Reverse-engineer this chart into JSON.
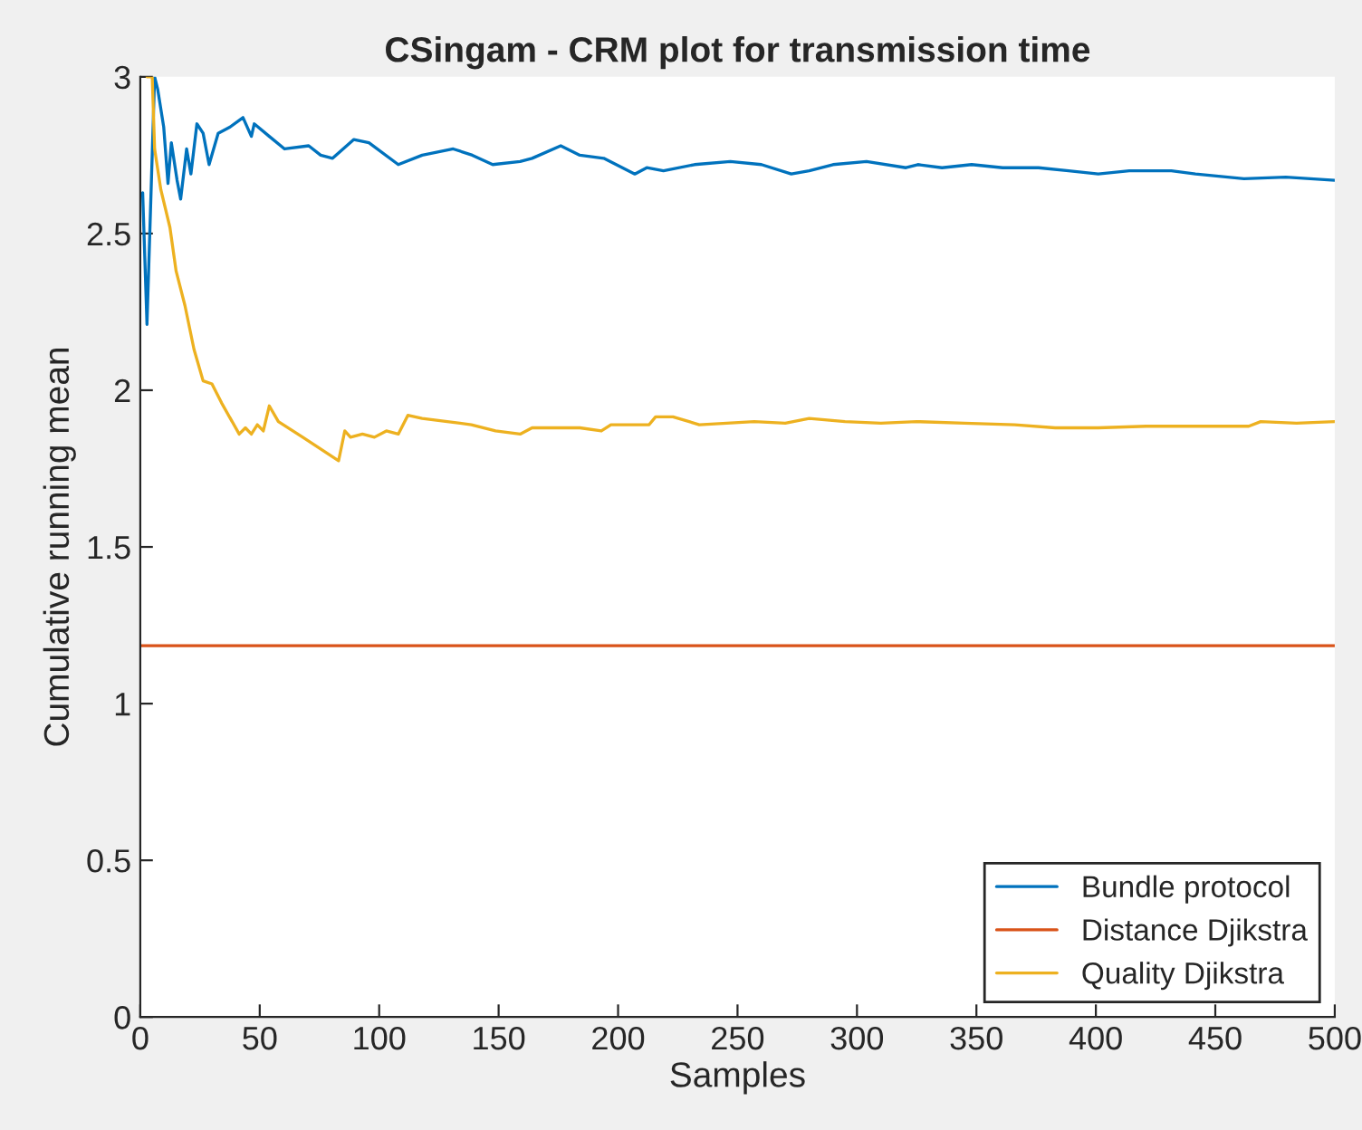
{
  "chart_data": {
    "type": "line",
    "title": "CSingam - CRM plot for transmission time",
    "xlabel": "Samples",
    "ylabel": "Cumulative running mean",
    "xlim": [
      0,
      500
    ],
    "xticks": [
      0,
      50,
      100,
      150,
      200,
      250,
      300,
      350,
      400,
      450,
      500
    ],
    "ylim": [
      0,
      3
    ],
    "yticks": [
      0,
      0.5,
      1,
      1.5,
      2,
      2.5,
      3
    ],
    "grid": false,
    "legend": "bottom right",
    "series": [
      {
        "name": "Bundle protocol",
        "color": "#0072bd",
        "x": [
          1,
          2.8,
          6,
          7.3,
          9.8,
          11.6,
          13,
          15.4,
          16.9,
          19.4,
          21.2,
          23.7,
          26.3,
          28.8,
          32.6,
          37.6,
          43,
          46.5,
          47.7,
          54,
          60.4,
          70.5,
          75.5,
          80.5,
          89.4,
          95.7,
          108,
          118,
          131,
          139,
          147.5,
          159,
          164,
          176,
          184,
          194,
          207,
          212,
          219,
          232,
          247,
          260,
          272.5,
          280,
          290,
          304,
          320.5,
          325.5,
          335.6,
          348,
          361,
          376,
          388.6,
          401,
          414,
          431.6,
          441.7,
          462,
          479.5,
          500
        ],
        "values": [
          2.63,
          2.21,
          3.0,
          2.96,
          2.84,
          2.66,
          2.79,
          2.67,
          2.61,
          2.77,
          2.69,
          2.85,
          2.82,
          2.72,
          2.82,
          2.84,
          2.87,
          2.81,
          2.85,
          2.81,
          2.77,
          2.78,
          2.75,
          2.74,
          2.8,
          2.79,
          2.72,
          2.75,
          2.77,
          2.75,
          2.72,
          2.73,
          2.74,
          2.78,
          2.75,
          2.74,
          2.69,
          2.71,
          2.7,
          2.72,
          2.73,
          2.72,
          2.69,
          2.7,
          2.72,
          2.73,
          2.71,
          2.72,
          2.71,
          2.72,
          2.71,
          2.71,
          2.7,
          2.69,
          2.7,
          2.7,
          2.69,
          2.675,
          2.68,
          2.67
        ]
      },
      {
        "name": "Distance Djikstra",
        "color": "#d95319",
        "x": [
          0,
          500
        ],
        "values": [
          1.185,
          1.185
        ]
      },
      {
        "name": "Quality Djikstra",
        "color": "#edb120",
        "x": [
          2.8,
          5,
          6,
          8.6,
          12.4,
          15,
          18.7,
          22.5,
          26.3,
          30,
          34,
          41.4,
          44,
          46.5,
          49,
          51.5,
          54,
          57.8,
          68,
          83,
          85.6,
          88,
          93,
          98,
          103,
          108,
          112,
          118,
          128.5,
          138.6,
          148.7,
          159,
          164,
          176.5,
          184,
          193,
          197,
          213,
          215.7,
          223,
          234,
          257,
          270,
          280,
          295,
          310,
          325,
          345,
          366,
          383,
          401,
          421,
          441,
          464,
          469,
          484,
          500
        ],
        "values": [
          3.0,
          3.0,
          2.77,
          2.64,
          2.52,
          2.38,
          2.27,
          2.13,
          2.03,
          2.02,
          1.96,
          1.86,
          1.88,
          1.86,
          1.89,
          1.87,
          1.95,
          1.9,
          1.85,
          1.775,
          1.87,
          1.85,
          1.86,
          1.85,
          1.87,
          1.86,
          1.92,
          1.91,
          1.9,
          1.89,
          1.87,
          1.86,
          1.88,
          1.88,
          1.88,
          1.87,
          1.89,
          1.89,
          1.915,
          1.915,
          1.89,
          1.9,
          1.895,
          1.91,
          1.9,
          1.895,
          1.9,
          1.895,
          1.89,
          1.88,
          1.88,
          1.885,
          1.885,
          1.885,
          1.9,
          1.895,
          1.9
        ]
      }
    ]
  }
}
